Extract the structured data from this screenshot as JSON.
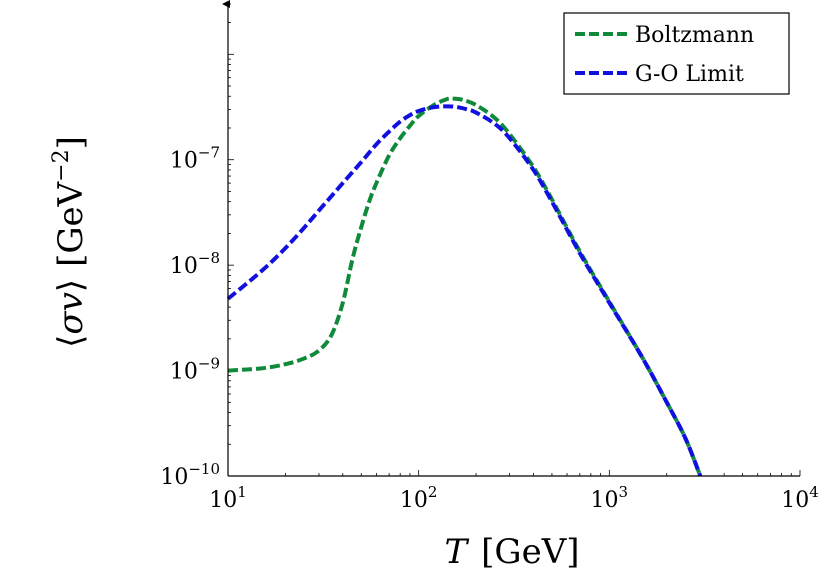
{
  "chart_data": {
    "type": "line",
    "xlabel": "T [GeV]",
    "ylabel": "⟨σv⟩ [GeV−2]",
    "x_scale": "log",
    "y_scale": "log",
    "xlim": [
      10,
      10000
    ],
    "ylim": [
      1e-10,
      3e-06
    ],
    "x_ticks": [
      {
        "value": 10,
        "base": "10",
        "exp": "1"
      },
      {
        "value": 100,
        "base": "10",
        "exp": "2"
      },
      {
        "value": 1000,
        "base": "10",
        "exp": "3"
      },
      {
        "value": 10000,
        "base": "10",
        "exp": "4"
      }
    ],
    "y_ticks": [
      {
        "value": 1e-10,
        "base": "10",
        "exp": "−10"
      },
      {
        "value": 1e-09,
        "base": "10",
        "exp": "−9"
      },
      {
        "value": 1e-08,
        "base": "10",
        "exp": "−8"
      },
      {
        "value": 1e-07,
        "base": "10",
        "exp": "−7"
      }
    ],
    "grid": false,
    "legend_position": "top-right",
    "series": [
      {
        "name": "Boltzmann",
        "color": "#0f8a3a",
        "style": "dashed",
        "points": [
          [
            10,
            1e-09
          ],
          [
            15,
            1.05e-09
          ],
          [
            20,
            1.15e-09
          ],
          [
            25,
            1.3e-09
          ],
          [
            30,
            1.55e-09
          ],
          [
            35,
            2.2e-09
          ],
          [
            40,
            4.4e-09
          ],
          [
            45,
            1.15e-08
          ],
          [
            50,
            2.3e-08
          ],
          [
            55,
            4e-08
          ],
          [
            60,
            6e-08
          ],
          [
            70,
            1.1e-07
          ],
          [
            80,
            1.6e-07
          ],
          [
            90,
            2.1e-07
          ],
          [
            100,
            2.6e-07
          ],
          [
            120,
            3.3e-07
          ],
          [
            140,
            3.75e-07
          ],
          [
            150,
            3.8e-07
          ],
          [
            170,
            3.7e-07
          ],
          [
            200,
            3.3e-07
          ],
          [
            250,
            2.5e-07
          ],
          [
            300,
            1.75e-07
          ],
          [
            400,
            8.5e-08
          ],
          [
            500,
            4.2e-08
          ],
          [
            700,
            1.35e-08
          ],
          [
            1000,
            4.5e-09
          ],
          [
            1500,
            1.3e-09
          ],
          [
            2000,
            5e-10
          ],
          [
            2500,
            2.3e-10
          ],
          [
            3000,
            1e-10
          ]
        ]
      },
      {
        "name": "G-O Limit",
        "color": "#1010e0",
        "style": "dashed",
        "points": [
          [
            10,
            4.8e-09
          ],
          [
            15,
            8.8e-09
          ],
          [
            20,
            1.45e-08
          ],
          [
            25,
            2.25e-08
          ],
          [
            30,
            3.3e-08
          ],
          [
            40,
            6e-08
          ],
          [
            50,
            9.5e-08
          ],
          [
            60,
            1.4e-07
          ],
          [
            70,
            1.85e-07
          ],
          [
            80,
            2.3e-07
          ],
          [
            90,
            2.65e-07
          ],
          [
            100,
            2.9e-07
          ],
          [
            120,
            3.15e-07
          ],
          [
            150,
            3.2e-07
          ],
          [
            180,
            3e-07
          ],
          [
            200,
            2.8e-07
          ],
          [
            250,
            2.2e-07
          ],
          [
            300,
            1.6e-07
          ],
          [
            400,
            8e-08
          ],
          [
            500,
            4e-08
          ],
          [
            700,
            1.3e-08
          ],
          [
            1000,
            4.4e-09
          ],
          [
            1500,
            1.3e-09
          ],
          [
            2000,
            5e-10
          ],
          [
            2500,
            2.3e-10
          ],
          [
            3000,
            1e-10
          ]
        ]
      }
    ]
  }
}
